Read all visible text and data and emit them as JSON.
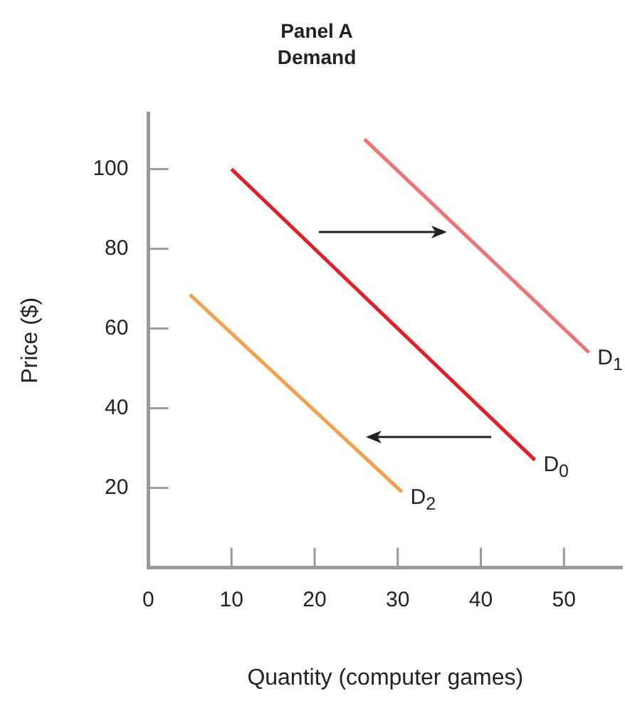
{
  "chart_data": {
    "type": "line",
    "title": "Panel A",
    "subtitle": "Demand",
    "xlabel": "Quantity (computer games)",
    "ylabel": "Price ($)",
    "series": [
      {
        "name": "D$_{0}$",
        "color": "#e31e24",
        "x": [
          10,
          46.5
        ],
        "values": [
          100,
          27
        ]
      },
      {
        "name": "D$_{1}$",
        "color": "#f07272",
        "x": [
          26,
          53
        ],
        "values": [
          107.5,
          54
        ]
      },
      {
        "name": "D$_{2}$",
        "color": "#f5a04a",
        "x": [
          5,
          30.5
        ],
        "values": [
          68.5,
          19
        ]
      }
    ],
    "xlim": [
      0,
      57
    ],
    "xticks": [
      0,
      10,
      20,
      30,
      40,
      50
    ],
    "ylim": [
      0,
      114
    ],
    "yticks": [
      20,
      40,
      60,
      80,
      100
    ],
    "grid": false,
    "legend": false,
    "marker": "none",
    "line_style": "solid"
  }
}
